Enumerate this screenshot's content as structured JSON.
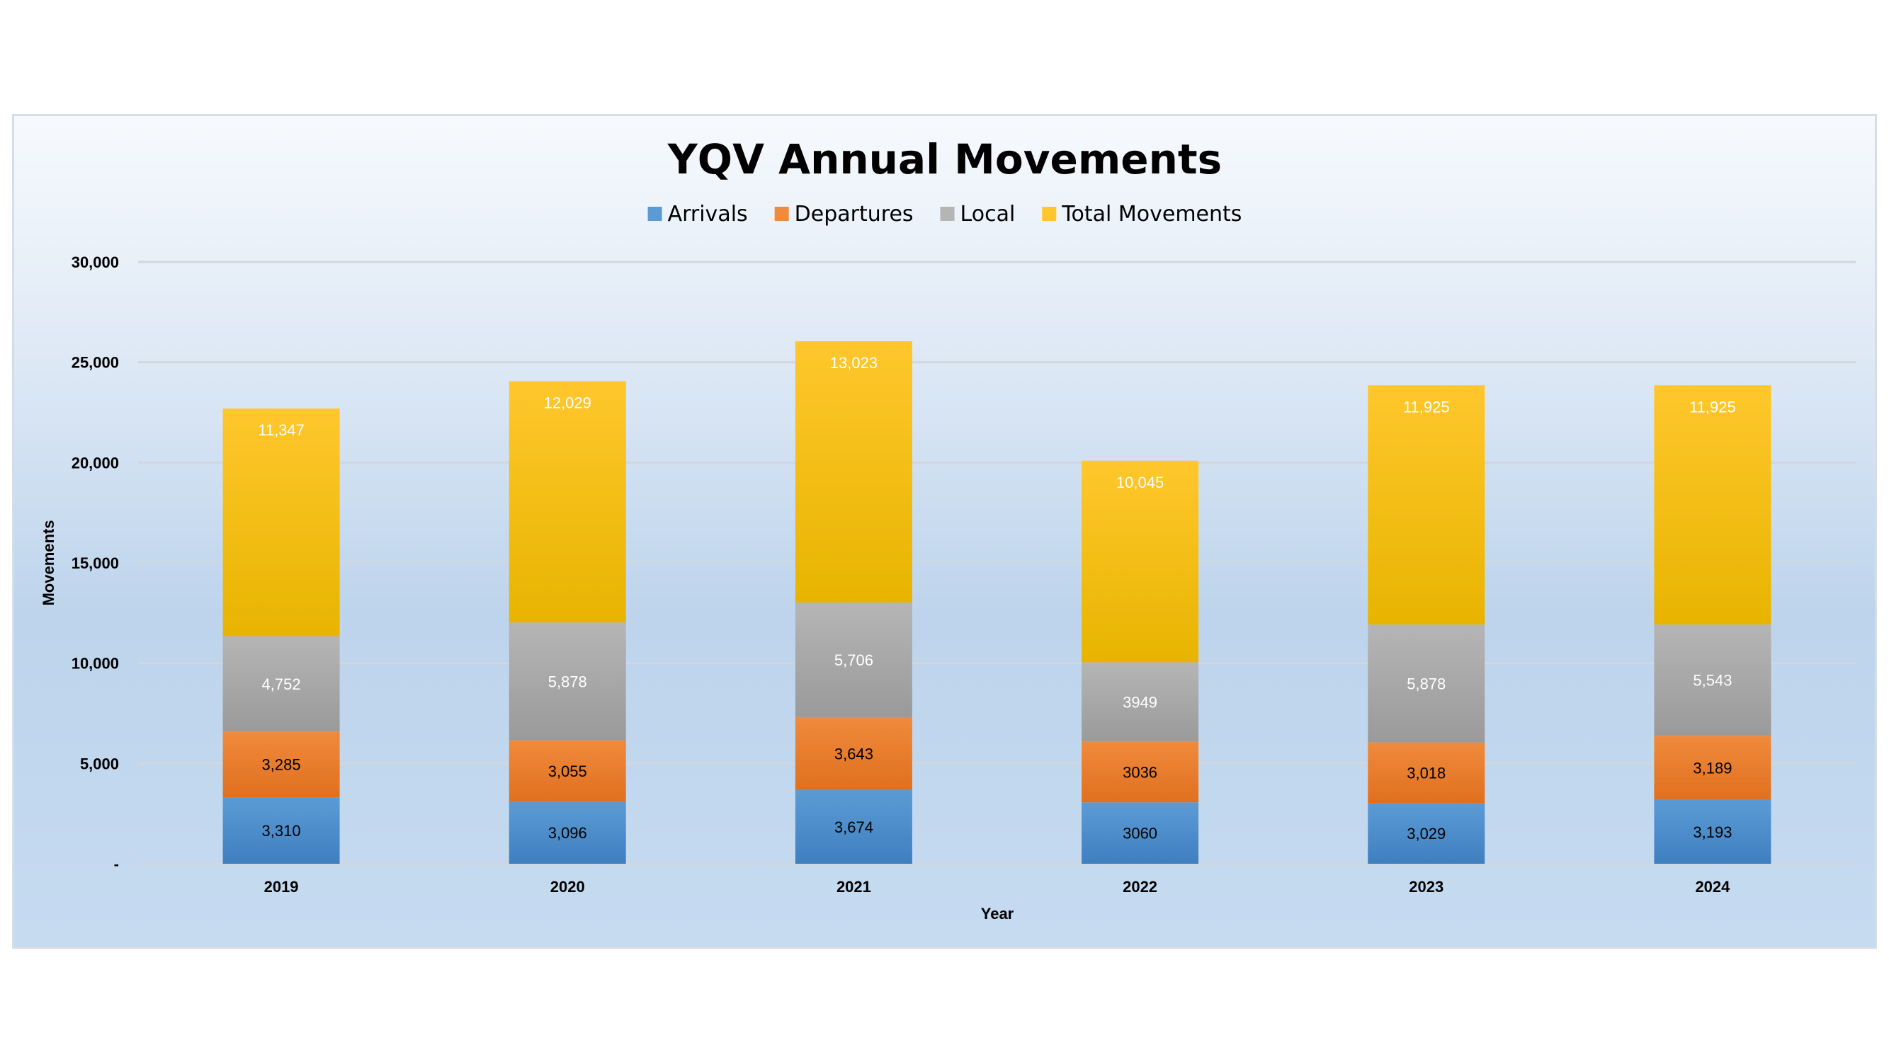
{
  "chart_data": {
    "type": "bar",
    "stacked": true,
    "title": "YQV Annual Movements",
    "xlabel": "Year",
    "ylabel": "Movements",
    "ylim": [
      0,
      30000
    ],
    "yticks": [
      0,
      5000,
      10000,
      15000,
      20000,
      25000,
      30000
    ],
    "ytick_labels": [
      "-",
      "5,000",
      "10,000",
      "15,000",
      "20,000",
      "25,000",
      "30,000"
    ],
    "grid": true,
    "legend": "top-center",
    "categories": [
      "2019",
      "2020",
      "2021",
      "2022",
      "2023",
      "2024"
    ],
    "series": [
      {
        "name": "Arrivals",
        "color": "#5b9bd5",
        "dark": "#3f7fc0",
        "values": [
          3310,
          3096,
          3674,
          3060,
          3029,
          3193
        ],
        "labels": [
          "3,310",
          "3,096",
          "3,674",
          "3060",
          "3,029",
          "3,193"
        ],
        "label_color": "#000000"
      },
      {
        "name": "Departures",
        "color": "#f08a3c",
        "dark": "#e0701f",
        "values": [
          3285,
          3055,
          3643,
          3036,
          3018,
          3189
        ],
        "labels": [
          "3,285",
          "3,055",
          "3,643",
          "3036",
          "3,018",
          "3,189"
        ],
        "label_color": "#000000"
      },
      {
        "name": "Local",
        "color": "#b5b5b5",
        "dark": "#9a9a9a",
        "values": [
          4752,
          5878,
          5706,
          3949,
          5878,
          5543
        ],
        "labels": [
          "4,752",
          "5,878",
          "5,706",
          "3949",
          "5,878",
          "5,543"
        ],
        "label_color": "#ffffff"
      },
      {
        "name": "Total Movements",
        "color": "#ffc72c",
        "dark": "#e8b400",
        "values": [
          11347,
          12029,
          13023,
          10045,
          11925,
          11925
        ],
        "labels": [
          "11,347",
          "12,029",
          "13,023",
          "10,045",
          "11,925",
          "11,925"
        ],
        "label_color": "#ffffff"
      }
    ]
  }
}
